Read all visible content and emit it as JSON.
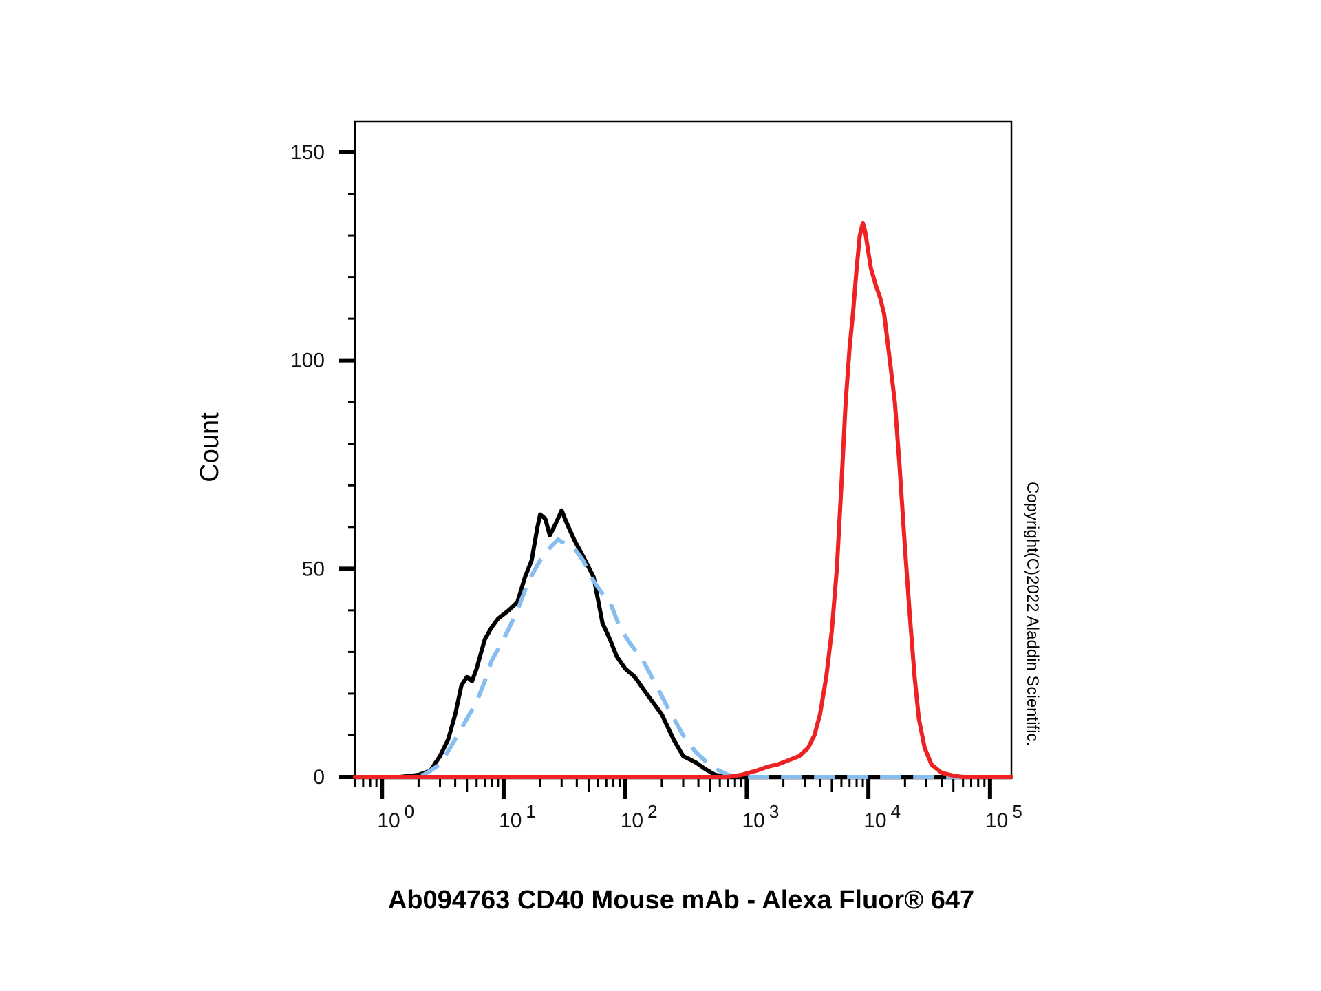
{
  "chart_data": {
    "type": "line",
    "title": "",
    "xlabel": "Ab094763 CD40 Mouse mAb - Alexa Fluor® 647",
    "ylabel": "Count",
    "x_scale": "log",
    "xlim": [
      0.6,
      150000
    ],
    "ylim": [
      0,
      150
    ],
    "y_ticks": [
      0,
      50,
      100,
      150
    ],
    "y_tick_labels": [
      "0",
      "50",
      "100",
      "150"
    ],
    "x_ticks": [
      1,
      10,
      100,
      1000,
      10000,
      100000
    ],
    "x_tick_labels": [
      {
        "base": "10",
        "exp": "0"
      },
      {
        "base": "10",
        "exp": "1"
      },
      {
        "base": "10",
        "exp": "2"
      },
      {
        "base": "10",
        "exp": "3"
      },
      {
        "base": "10",
        "exp": "4"
      },
      {
        "base": "10",
        "exp": "5"
      }
    ],
    "grid": false,
    "annotation": "Copyright(C)2022 Aladdin Scientific.",
    "series": [
      {
        "color": "#000000",
        "style": "solid",
        "points": [
          [
            0.6,
            0
          ],
          [
            1.4,
            0
          ],
          [
            2,
            0.5
          ],
          [
            2.5,
            1.5
          ],
          [
            3,
            5
          ],
          [
            3.5,
            9
          ],
          [
            4,
            15
          ],
          [
            4.5,
            22
          ],
          [
            5,
            24
          ],
          [
            5.5,
            23
          ],
          [
            6,
            26
          ],
          [
            7,
            33
          ],
          [
            8,
            36
          ],
          [
            9,
            38
          ],
          [
            11,
            40
          ],
          [
            13,
            42
          ],
          [
            15,
            48
          ],
          [
            17,
            52
          ],
          [
            19,
            60
          ],
          [
            20,
            63
          ],
          [
            22,
            62
          ],
          [
            24,
            58
          ],
          [
            27,
            61
          ],
          [
            30,
            64
          ],
          [
            33,
            61
          ],
          [
            38,
            57
          ],
          [
            45,
            53
          ],
          [
            55,
            48
          ],
          [
            65,
            37
          ],
          [
            75,
            33
          ],
          [
            85,
            29
          ],
          [
            100,
            26
          ],
          [
            120,
            24
          ],
          [
            150,
            20
          ],
          [
            200,
            15
          ],
          [
            250,
            9
          ],
          [
            300,
            5
          ],
          [
            380,
            3.5
          ],
          [
            450,
            2
          ],
          [
            550,
            0.5
          ],
          [
            700,
            0
          ],
          [
            150000,
            0
          ]
        ]
      },
      {
        "color": "#88bdf0",
        "style": "dashed",
        "points": [
          [
            0.6,
            0
          ],
          [
            1.6,
            0
          ],
          [
            2.2,
            0.5
          ],
          [
            3,
            3
          ],
          [
            4,
            9
          ],
          [
            5,
            14
          ],
          [
            6,
            18
          ],
          [
            7,
            23
          ],
          [
            8,
            28
          ],
          [
            10,
            33
          ],
          [
            13,
            40
          ],
          [
            16,
            47
          ],
          [
            20,
            52
          ],
          [
            24,
            55
          ],
          [
            28,
            57
          ],
          [
            32,
            56
          ],
          [
            38,
            55
          ],
          [
            45,
            52
          ],
          [
            55,
            47
          ],
          [
            65,
            44
          ],
          [
            75,
            42
          ],
          [
            90,
            36
          ],
          [
            110,
            32
          ],
          [
            140,
            28
          ],
          [
            180,
            22
          ],
          [
            230,
            16
          ],
          [
            300,
            10
          ],
          [
            380,
            6
          ],
          [
            450,
            4
          ],
          [
            550,
            2
          ],
          [
            700,
            0.5
          ],
          [
            900,
            0
          ],
          [
            150000,
            0
          ]
        ]
      },
      {
        "color": "#ee2222",
        "style": "solid",
        "points": [
          [
            0.6,
            0
          ],
          [
            700,
            0
          ],
          [
            900,
            0.5
          ],
          [
            1200,
            1.5
          ],
          [
            1500,
            2.5
          ],
          [
            1800,
            3
          ],
          [
            2200,
            4
          ],
          [
            2700,
            5
          ],
          [
            3200,
            7
          ],
          [
            3600,
            10
          ],
          [
            4000,
            15
          ],
          [
            4500,
            24
          ],
          [
            5000,
            35
          ],
          [
            5500,
            50
          ],
          [
            6000,
            70
          ],
          [
            6500,
            90
          ],
          [
            7000,
            103
          ],
          [
            7500,
            112
          ],
          [
            8000,
            122
          ],
          [
            8500,
            130
          ],
          [
            9000,
            133
          ],
          [
            9400,
            131
          ],
          [
            10000,
            126
          ],
          [
            10500,
            122
          ],
          [
            11000,
            120
          ],
          [
            11500,
            118
          ],
          [
            12500,
            115
          ],
          [
            13500,
            111
          ],
          [
            15000,
            100
          ],
          [
            16500,
            90
          ],
          [
            18000,
            75
          ],
          [
            20000,
            55
          ],
          [
            22000,
            38
          ],
          [
            24000,
            24
          ],
          [
            26000,
            14
          ],
          [
            29000,
            7
          ],
          [
            33000,
            3
          ],
          [
            40000,
            1
          ],
          [
            50000,
            0.3
          ],
          [
            60000,
            0
          ],
          [
            150000,
            0
          ]
        ]
      }
    ]
  }
}
